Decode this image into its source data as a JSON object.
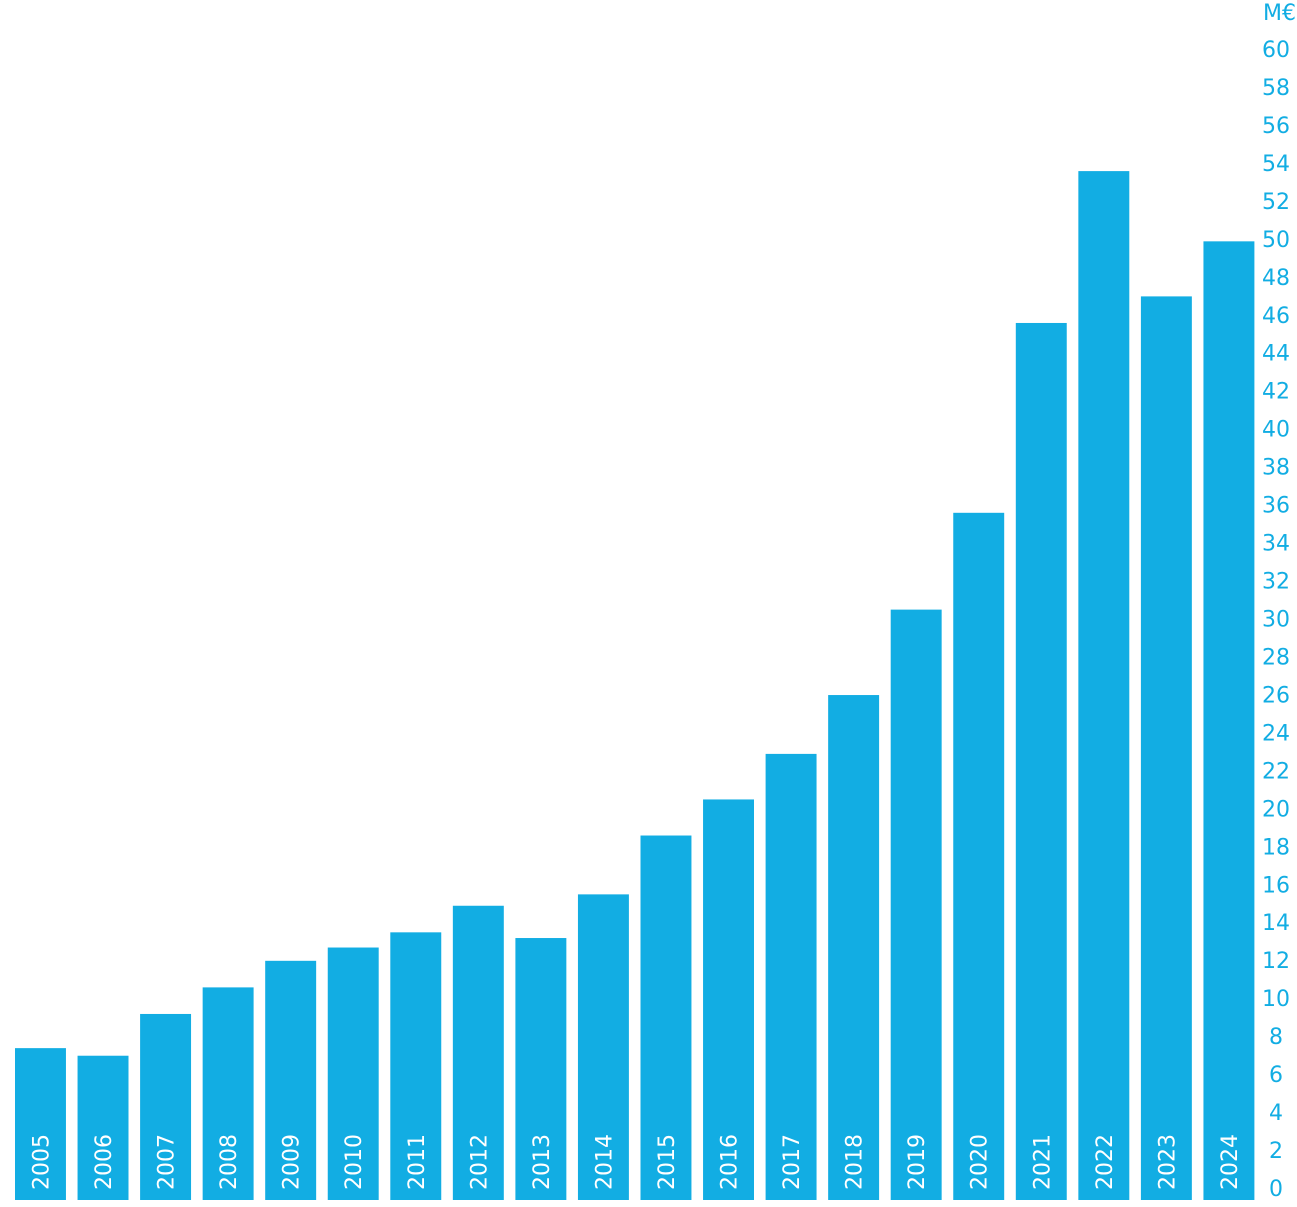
{
  "chart_data": {
    "type": "bar",
    "y_label": "M€",
    "categories": [
      "2005",
      "2006",
      "2007",
      "2008",
      "2009",
      "2010",
      "2011",
      "2012",
      "2013",
      "2014",
      "2015",
      "2016",
      "2017",
      "2018",
      "2019",
      "2020",
      "2021",
      "2022",
      "2023",
      "2024"
    ],
    "values": [
      8.0,
      7.6,
      9.8,
      11.2,
      12.6,
      13.3,
      14.1,
      15.5,
      13.8,
      16.1,
      19.2,
      21.1,
      23.5,
      26.6,
      31.1,
      36.2,
      46.2,
      54.2,
      47.6,
      50.5
    ],
    "color": "#12ade3",
    "ylim": [
      0,
      60
    ],
    "yticks": [
      0,
      2,
      4,
      6,
      8,
      10,
      12,
      14,
      16,
      18,
      20,
      22,
      24,
      26,
      28,
      30,
      32,
      34,
      36,
      38,
      40,
      42,
      44,
      46,
      48,
      50,
      52,
      54,
      56,
      58,
      60
    ],
    "grid": false
  }
}
